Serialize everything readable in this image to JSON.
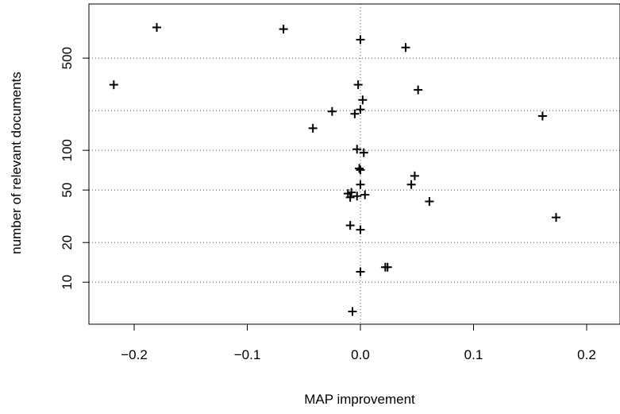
{
  "chart_data": {
    "type": "scatter",
    "xlabel": "MAP improvement",
    "ylabel": "number of relevant documents",
    "xlim": [
      -0.24,
      0.23
    ],
    "ylim": [
      5,
      950
    ],
    "y_scale": "log",
    "grid": {
      "vertical_at": [
        0
      ],
      "horizontal_at": [
        10,
        20,
        50,
        100,
        200,
        500
      ]
    },
    "x_ticks": [
      {
        "value": -0.2,
        "label": "−0.2"
      },
      {
        "value": -0.1,
        "label": "−0.1"
      },
      {
        "value": 0.0,
        "label": "0.0"
      },
      {
        "value": 0.1,
        "label": "0.1"
      },
      {
        "value": 0.2,
        "label": "0.2"
      }
    ],
    "y_ticks": [
      {
        "value": 10,
        "label": "10"
      },
      {
        "value": 20,
        "label": "20"
      },
      {
        "value": 50,
        "label": "50"
      },
      {
        "value": 100,
        "label": "100"
      },
      {
        "value": 500,
        "label": "500"
      }
    ],
    "points": [
      {
        "x": -0.18,
        "y": 854
      },
      {
        "x": -0.068,
        "y": 830
      },
      {
        "x": 0.0,
        "y": 690
      },
      {
        "x": 0.04,
        "y": 602
      },
      {
        "x": -0.218,
        "y": 314
      },
      {
        "x": -0.002,
        "y": 314
      },
      {
        "x": 0.051,
        "y": 287
      },
      {
        "x": 0.002,
        "y": 241
      },
      {
        "x": 0.0,
        "y": 204
      },
      {
        "x": -0.025,
        "y": 197
      },
      {
        "x": -0.005,
        "y": 189
      },
      {
        "x": 0.161,
        "y": 182
      },
      {
        "x": -0.042,
        "y": 147
      },
      {
        "x": -0.003,
        "y": 102
      },
      {
        "x": 0.003,
        "y": 96
      },
      {
        "x": -0.001,
        "y": 73
      },
      {
        "x": 0.0,
        "y": 71
      },
      {
        "x": 0.048,
        "y": 64
      },
      {
        "x": 0.0,
        "y": 55
      },
      {
        "x": 0.045,
        "y": 55
      },
      {
        "x": -0.008,
        "y": 48
      },
      {
        "x": -0.011,
        "y": 47
      },
      {
        "x": 0.004,
        "y": 46
      },
      {
        "x": -0.003,
        "y": 45
      },
      {
        "x": -0.009,
        "y": 44
      },
      {
        "x": 0.061,
        "y": 41
      },
      {
        "x": 0.173,
        "y": 31
      },
      {
        "x": -0.009,
        "y": 27
      },
      {
        "x": 0.0,
        "y": 25
      },
      {
        "x": 0.022,
        "y": 13
      },
      {
        "x": 0.024,
        "y": 13
      },
      {
        "x": 0.0,
        "y": 12
      },
      {
        "x": -0.007,
        "y": 6
      }
    ]
  }
}
